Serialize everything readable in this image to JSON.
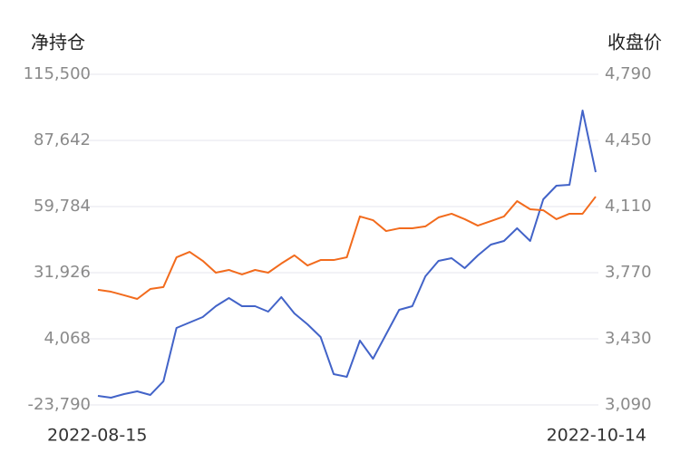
{
  "chart_data": {
    "type": "line",
    "y_label": "净持仓",
    "y2_label": "收盘价",
    "categories": [
      "2022-08-15",
      null,
      null,
      null,
      null,
      null,
      null,
      null,
      null,
      null,
      null,
      null,
      null,
      null,
      null,
      null,
      null,
      null,
      null,
      null,
      null,
      null,
      null,
      null,
      null,
      null,
      null,
      null,
      null,
      null,
      null,
      null,
      null,
      null,
      null,
      null,
      null,
      null,
      "2022-10-14"
    ],
    "series": [
      {
        "color": "#4263c8",
        "axis": "y",
        "values": [
          -19970,
          -20731,
          -19205,
          -18060,
          -19586,
          -13862,
          8652,
          10942,
          13231,
          17810,
          21245,
          17810,
          17810,
          15521,
          21626,
          14758,
          10178,
          4836,
          -10810,
          -11954,
          3310,
          -4322,
          5981,
          16284,
          17810,
          30403,
          36890,
          38035,
          33838,
          39180,
          43759,
          45286,
          50628,
          45286,
          62839,
          68563,
          68945,
          100236,
          74287
        ]
      },
      {
        "color": "#f26b1d",
        "axis": "y2",
        "values": [
          3682,
          3672,
          3654,
          3635,
          3686,
          3696,
          3849,
          3877,
          3831,
          3770,
          3784,
          3761,
          3784,
          3770,
          3817,
          3859,
          3807,
          3835,
          3835,
          3849,
          4059,
          4040,
          3984,
          3998,
          3998,
          4008,
          4054,
          4073,
          4045,
          4012,
          4035,
          4059,
          4138,
          4096,
          4091,
          4045,
          4073,
          4073,
          4161
        ]
      }
    ],
    "ylim": [
      -23790,
      115500
    ],
    "yticks": [
      {
        "value": -23790,
        "label": "-23,790"
      },
      {
        "value": 4068,
        "label": "4,068"
      },
      {
        "value": 31926,
        "label": "31,926"
      },
      {
        "value": 59784,
        "label": "59,784"
      },
      {
        "value": 87642,
        "label": "87,642"
      },
      {
        "value": 115500,
        "label": "115,500"
      }
    ],
    "y2lim": [
      3090,
      4790
    ],
    "y2ticks": [
      {
        "value": 3090,
        "label": "3,090"
      },
      {
        "value": 3430,
        "label": "3,430"
      },
      {
        "value": 3770,
        "label": "3,770"
      },
      {
        "value": 4110,
        "label": "4,110"
      },
      {
        "value": 4450,
        "label": "4,450"
      },
      {
        "value": 4790,
        "label": "4,790"
      }
    ],
    "grid": true
  }
}
